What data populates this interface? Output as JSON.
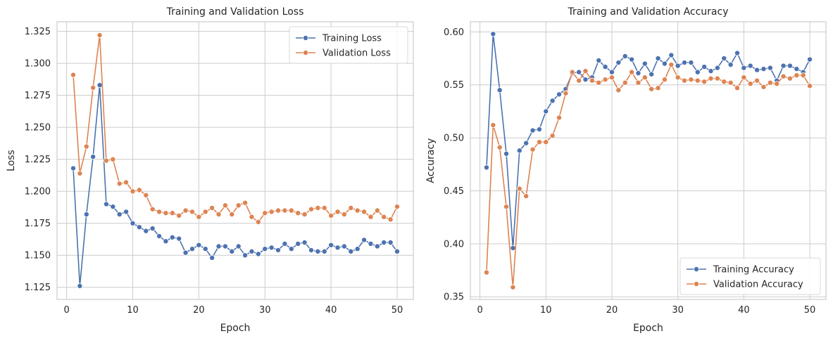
{
  "charts": [
    {
      "type": "line",
      "title": "Training and Validation Loss",
      "xlabel": "Epoch",
      "ylabel": "Loss",
      "xlim": [
        -1.45,
        52.45
      ],
      "ylim": [
        1.1155,
        1.3325
      ],
      "xticks": [
        0,
        10,
        20,
        30,
        40,
        50
      ],
      "yticks": [
        1.125,
        1.15,
        1.175,
        1.2,
        1.225,
        1.25,
        1.275,
        1.3,
        1.325
      ],
      "ytick_decimals": 3,
      "legend_position": "top-right",
      "grid": true,
      "x": [
        1,
        2,
        3,
        4,
        5,
        6,
        7,
        8,
        9,
        10,
        11,
        12,
        13,
        14,
        15,
        16,
        17,
        18,
        19,
        20,
        21,
        22,
        23,
        24,
        25,
        26,
        27,
        28,
        29,
        30,
        31,
        32,
        33,
        34,
        35,
        36,
        37,
        38,
        39,
        40,
        41,
        42,
        43,
        44,
        45,
        46,
        47,
        48,
        49,
        50
      ],
      "series": [
        {
          "name": "Training Loss",
          "color": "#4c72b0",
          "values": [
            1.218,
            1.126,
            1.182,
            1.227,
            1.283,
            1.19,
            1.188,
            1.182,
            1.184,
            1.175,
            1.172,
            1.169,
            1.171,
            1.165,
            1.161,
            1.164,
            1.163,
            1.152,
            1.155,
            1.158,
            1.155,
            1.148,
            1.157,
            1.157,
            1.153,
            1.157,
            1.15,
            1.153,
            1.151,
            1.155,
            1.156,
            1.154,
            1.159,
            1.155,
            1.159,
            1.16,
            1.154,
            1.153,
            1.153,
            1.158,
            1.156,
            1.157,
            1.153,
            1.155,
            1.162,
            1.159,
            1.157,
            1.16,
            1.16,
            1.153
          ]
        },
        {
          "name": "Validation Loss",
          "color": "#dd8452",
          "values": [
            1.291,
            1.214,
            1.235,
            1.281,
            1.322,
            1.224,
            1.225,
            1.206,
            1.207,
            1.2,
            1.201,
            1.197,
            1.186,
            1.184,
            1.183,
            1.183,
            1.181,
            1.185,
            1.184,
            1.18,
            1.184,
            1.187,
            1.182,
            1.189,
            1.182,
            1.189,
            1.191,
            1.18,
            1.176,
            1.183,
            1.184,
            1.185,
            1.185,
            1.185,
            1.183,
            1.182,
            1.186,
            1.187,
            1.187,
            1.181,
            1.184,
            1.182,
            1.187,
            1.185,
            1.184,
            1.18,
            1.185,
            1.18,
            1.178,
            1.188
          ]
        }
      ]
    },
    {
      "type": "line",
      "title": "Training and Validation Accuracy",
      "xlabel": "Epoch",
      "ylabel": "Accuracy",
      "xlim": [
        -1.45,
        52.45
      ],
      "ylim": [
        0.3475,
        0.6095
      ],
      "xticks": [
        0,
        10,
        20,
        30,
        40,
        50
      ],
      "yticks": [
        0.35,
        0.4,
        0.45,
        0.5,
        0.55,
        0.6
      ],
      "ytick_decimals": 2,
      "legend_position": "bottom-right",
      "grid": true,
      "x": [
        1,
        2,
        3,
        4,
        5,
        6,
        7,
        8,
        9,
        10,
        11,
        12,
        13,
        14,
        15,
        16,
        17,
        18,
        19,
        20,
        21,
        22,
        23,
        24,
        25,
        26,
        27,
        28,
        29,
        30,
        31,
        32,
        33,
        34,
        35,
        36,
        37,
        38,
        39,
        40,
        41,
        42,
        43,
        44,
        45,
        46,
        47,
        48,
        49,
        50
      ],
      "series": [
        {
          "name": "Training Accuracy",
          "color": "#4c72b0",
          "values": [
            0.472,
            0.598,
            0.545,
            0.485,
            0.396,
            0.488,
            0.495,
            0.507,
            0.508,
            0.525,
            0.535,
            0.541,
            0.546,
            0.561,
            0.562,
            0.555,
            0.557,
            0.573,
            0.567,
            0.562,
            0.571,
            0.577,
            0.574,
            0.561,
            0.57,
            0.56,
            0.575,
            0.57,
            0.578,
            0.568,
            0.571,
            0.571,
            0.562,
            0.567,
            0.563,
            0.566,
            0.575,
            0.569,
            0.58,
            0.566,
            0.568,
            0.564,
            0.565,
            0.566,
            0.554,
            0.568,
            0.568,
            0.565,
            0.562,
            0.574
          ]
        },
        {
          "name": "Validation Accuracy",
          "color": "#dd8452",
          "values": [
            0.373,
            0.512,
            0.491,
            0.435,
            0.359,
            0.452,
            0.445,
            0.489,
            0.496,
            0.496,
            0.502,
            0.519,
            0.542,
            0.562,
            0.554,
            0.563,
            0.554,
            0.552,
            0.555,
            0.557,
            0.545,
            0.552,
            0.562,
            0.552,
            0.557,
            0.546,
            0.547,
            0.555,
            0.569,
            0.557,
            0.554,
            0.555,
            0.554,
            0.553,
            0.556,
            0.556,
            0.553,
            0.552,
            0.547,
            0.557,
            0.551,
            0.554,
            0.548,
            0.552,
            0.551,
            0.558,
            0.556,
            0.559,
            0.559,
            0.549
          ]
        }
      ]
    }
  ]
}
